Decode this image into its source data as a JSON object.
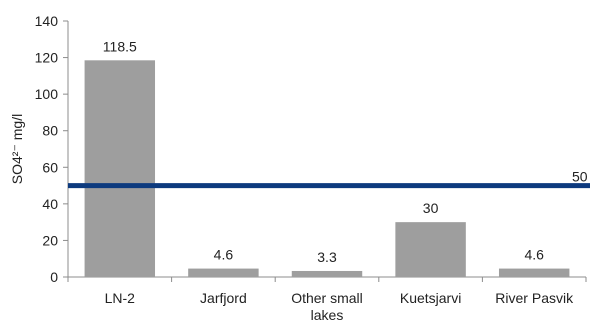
{
  "chart_data": {
    "type": "bar",
    "title": "",
    "xlabel": "",
    "ylabel": "SO4²⁻ mg/l",
    "ylim": [
      0,
      140
    ],
    "yticks": [
      0,
      20,
      40,
      60,
      80,
      100,
      120,
      140
    ],
    "categories": [
      "LN-2",
      "Jarfjord",
      "Other small lakes",
      "Kuetsjarvi",
      "River Pasvik"
    ],
    "category_lines": [
      [
        "LN-2"
      ],
      [
        "Jarfjord"
      ],
      [
        "Other small",
        "lakes"
      ],
      [
        "Kuetsjarvi"
      ],
      [
        "River Pasvik"
      ]
    ],
    "values": [
      118.5,
      4.6,
      3.3,
      30,
      4.6
    ],
    "data_labels": [
      "118.5",
      "4.6",
      "3.3",
      "30",
      "4.6"
    ],
    "reference_line": {
      "value": 50,
      "label": "50",
      "color": "#0d3a7e"
    },
    "bar_color": "#9e9e9e",
    "grid": false,
    "legend": "none"
  }
}
